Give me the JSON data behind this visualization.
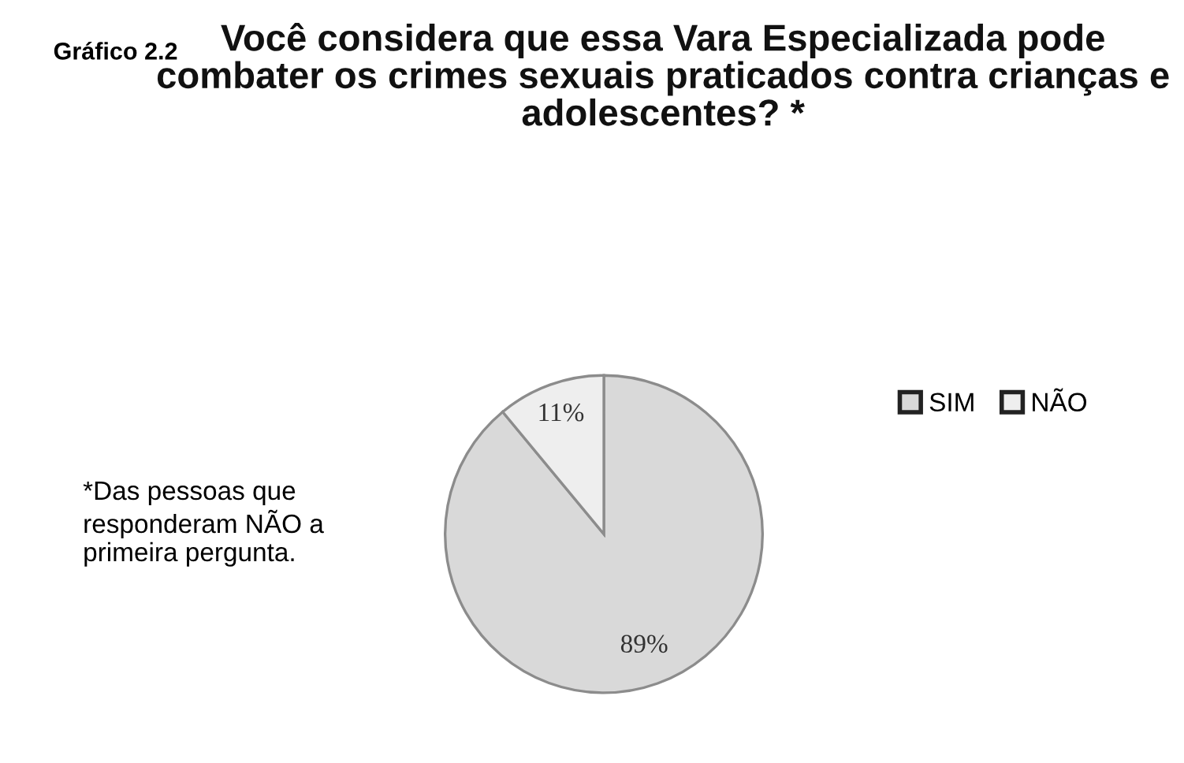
{
  "chart_data": {
    "type": "pie",
    "title": "Você considera que essa Vara Especializada pode combater os crimes sexuais praticados contra crianças e adolescentes? *",
    "categories": [
      "SIM",
      "NÃO"
    ],
    "values": [
      89,
      11
    ],
    "value_labels": [
      "89%",
      "11%"
    ],
    "colors": [
      "#d9d9d9",
      "#eeeeee"
    ],
    "legend": "right",
    "annotations": [
      "Gráfico 2.2",
      "*Das pessoas que responderam NÃO a primeira pergunta."
    ]
  }
}
